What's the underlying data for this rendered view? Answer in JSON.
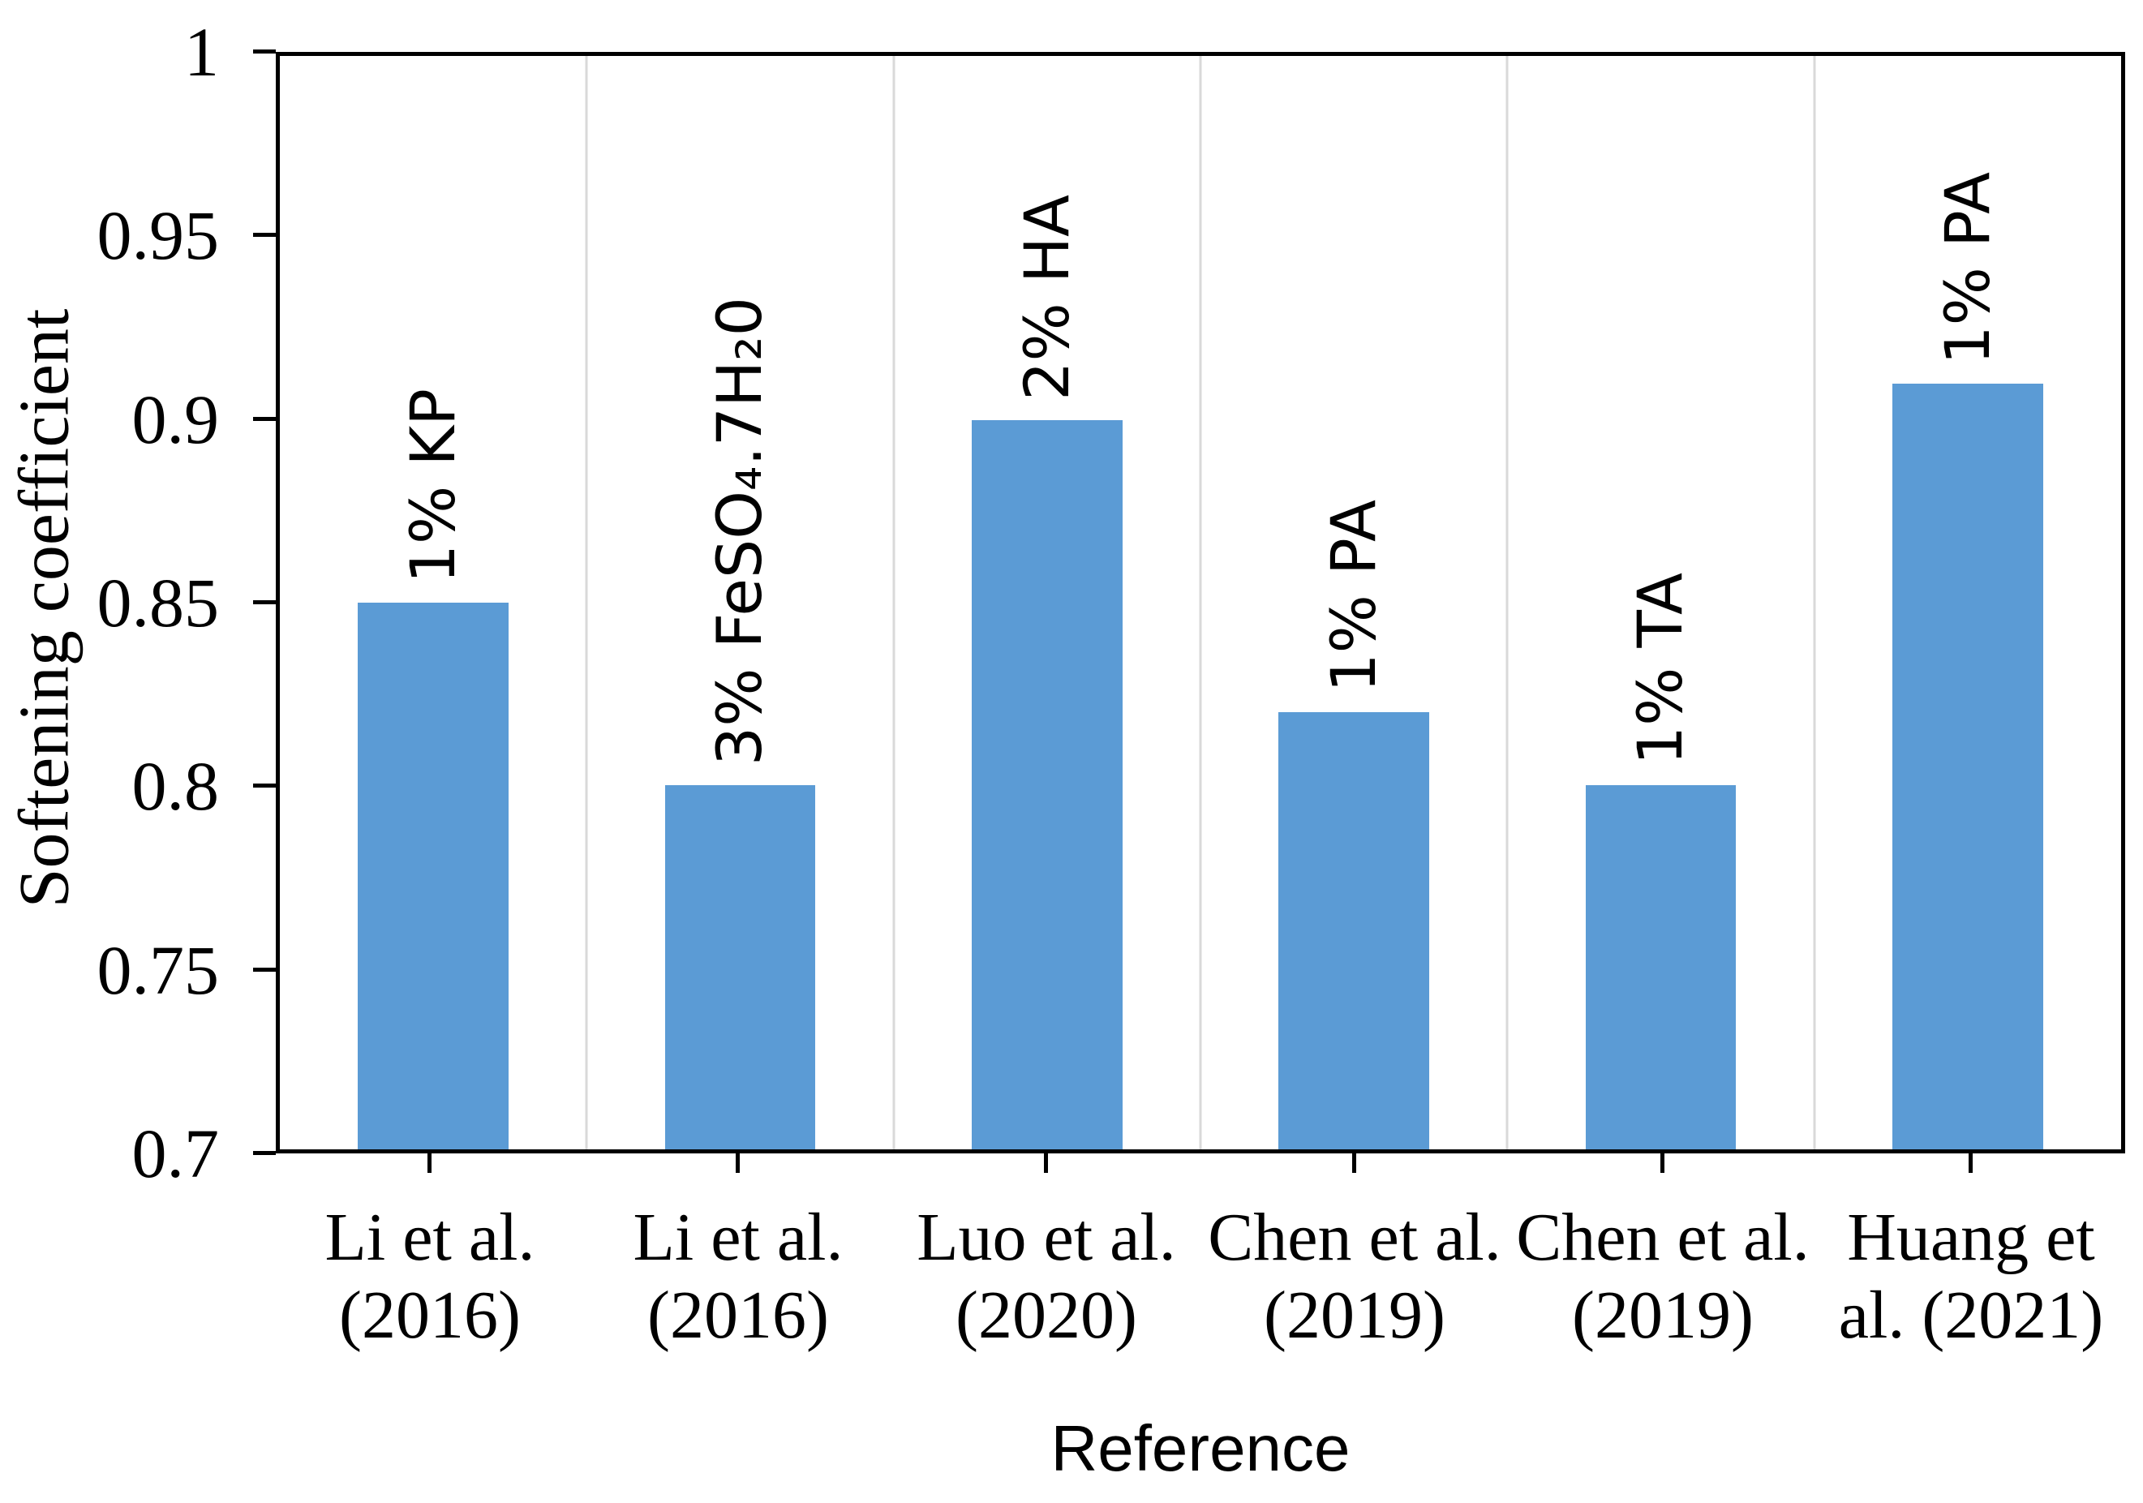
{
  "chart_data": {
    "type": "bar",
    "title": "",
    "xlabel": "Reference",
    "ylabel": "Softening coefficient",
    "categories": [
      "Li et al.\n(2016)",
      "Li et al.\n(2016)",
      "Luo et al.\n(2020)",
      "Chen et al.\n(2019)",
      "Chen et al.\n(2019)",
      "Huang et\nal. (2021)"
    ],
    "values": [
      0.85,
      0.8,
      0.9,
      0.82,
      0.8,
      0.91
    ],
    "bar_annotations": [
      "1% KP",
      "3% FeSO₄.7H₂0",
      "2% HA",
      "1% PA",
      "1% TA",
      "1% PA"
    ],
    "ylim": [
      0.7,
      1.0
    ],
    "ytick_values": [
      1,
      0.95,
      0.9,
      0.85,
      0.8,
      0.75,
      0.7
    ],
    "ytick_labels": [
      "1",
      "0.95",
      "0.9",
      "0.85",
      "0.8",
      "0.75",
      "0.7"
    ],
    "grid": "vertical category separator lines",
    "legend_position": "none",
    "colors": {
      "bar_fill": "#5B9BD5",
      "axis": "#000000",
      "gridline": "#D9D9D9",
      "text": "#000000",
      "background": "#FFFFFF"
    }
  }
}
